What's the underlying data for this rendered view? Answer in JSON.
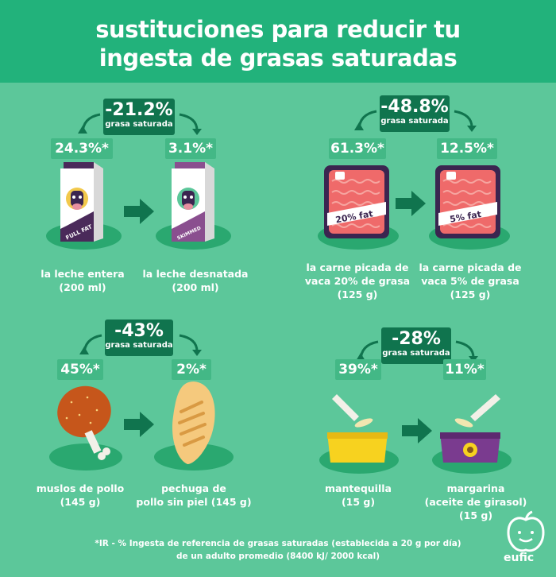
{
  "title": {
    "line1": "sustituciones para reducir tu",
    "line2": "ingesta de grasas saturadas"
  },
  "badge_sub": "grasa saturada",
  "comparisons": [
    {
      "reduction": "-21.2%",
      "left": {
        "pct": "24.3%*",
        "label1": "la leche entera",
        "label2": "(200 ml)",
        "tag": "FULL FAT"
      },
      "right": {
        "pct": "3.1%*",
        "label1": "la leche desnatada",
        "label2": "(200 ml)",
        "tag": "SKIMMED"
      }
    },
    {
      "reduction": "-48.8%",
      "left": {
        "pct": "61.3%*",
        "label1": "la carne picada de",
        "label2": "vaca 20% de grasa",
        "label3": "(125 g)",
        "tag": "20% fat"
      },
      "right": {
        "pct": "12.5%*",
        "label1": "la carne picada de",
        "label2": "vaca 5% de grasa",
        "label3": "(125 g)",
        "tag": "5% fat"
      }
    },
    {
      "reduction": "-43%",
      "left": {
        "pct": "45%*",
        "label1": "muslos de pollo",
        "label2": "(145 g)"
      },
      "right": {
        "pct": "2%*",
        "label1": "pechuga de",
        "label2": "pollo sin piel (145 g)"
      }
    },
    {
      "reduction": "-28%",
      "left": {
        "pct": "39%*",
        "label1": "mantequilla",
        "label2": "(15 g)"
      },
      "right": {
        "pct": "11%*",
        "label1": "margarina",
        "label2": "(aceite de girasol)",
        "label3": "(15 g)"
      }
    }
  ],
  "footer": {
    "line1": "*IR - % Ingesta de referencia de grasas saturadas (establecida a 20 g por día)",
    "line2": "de un adulto promedio (8400 kJ/ 2000 kcal)"
  },
  "logo": "eufic",
  "colors": {
    "header": "#22b27b",
    "background": "#5cc79a",
    "badge": "#10744e",
    "tag": "#43b886"
  }
}
